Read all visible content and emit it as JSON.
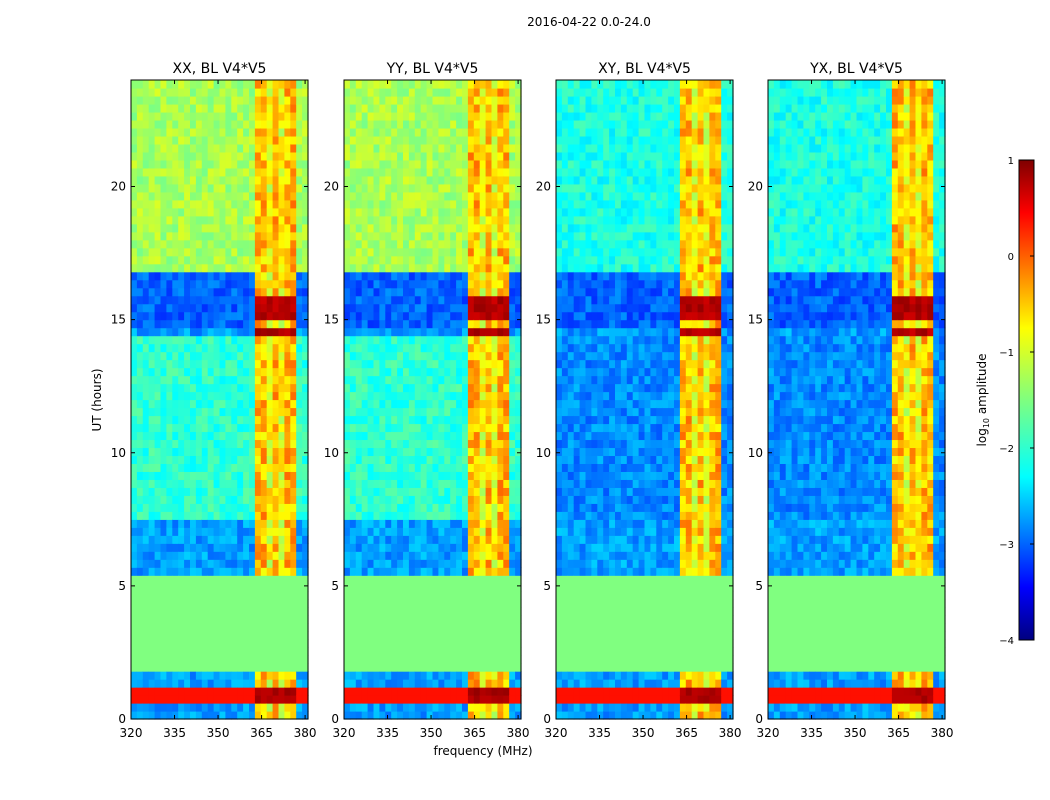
{
  "chart_data": {
    "type": "heatmap",
    "title": "2016-04-22 0.0-24.0",
    "xlabel": "frequency (MHz)",
    "ylabel": "UT (hours)",
    "xlim": [
      320,
      381
    ],
    "ylim": [
      0,
      24
    ],
    "xticks": [
      320,
      335,
      350,
      365,
      380
    ],
    "yticks": [
      0,
      5,
      10,
      15,
      20
    ],
    "panels": [
      {
        "title": "XX, BL V4*V5",
        "pol": "XX"
      },
      {
        "title": "YY, BL V4*V5",
        "pol": "YY"
      },
      {
        "title": "XY, BL V4*V5",
        "pol": "XY"
      },
      {
        "title": "YX, BL V4*V5",
        "pol": "YX"
      }
    ],
    "colorbar": {
      "label": "log10 amplitude",
      "label_main": "log",
      "label_sub": "10",
      "label_rest": " amplitude",
      "range": [
        -4,
        1
      ],
      "ticks": [
        1,
        0,
        -1,
        -2,
        -3,
        -4
      ],
      "tick_labels": [
        "1",
        "0",
        "−1",
        "−2",
        "−3",
        "−4"
      ],
      "colormap": "jet"
    },
    "uniform_blocks_hours": [
      [
        1.8,
        5.3
      ]
    ],
    "rfi_band_mhz": [
      362.5,
      377.5
    ],
    "strong_rfi_hours": [
      [
        0.7,
        1.3
      ],
      [
        14.3,
        14.6
      ],
      [
        15.0,
        16.0
      ]
    ]
  }
}
